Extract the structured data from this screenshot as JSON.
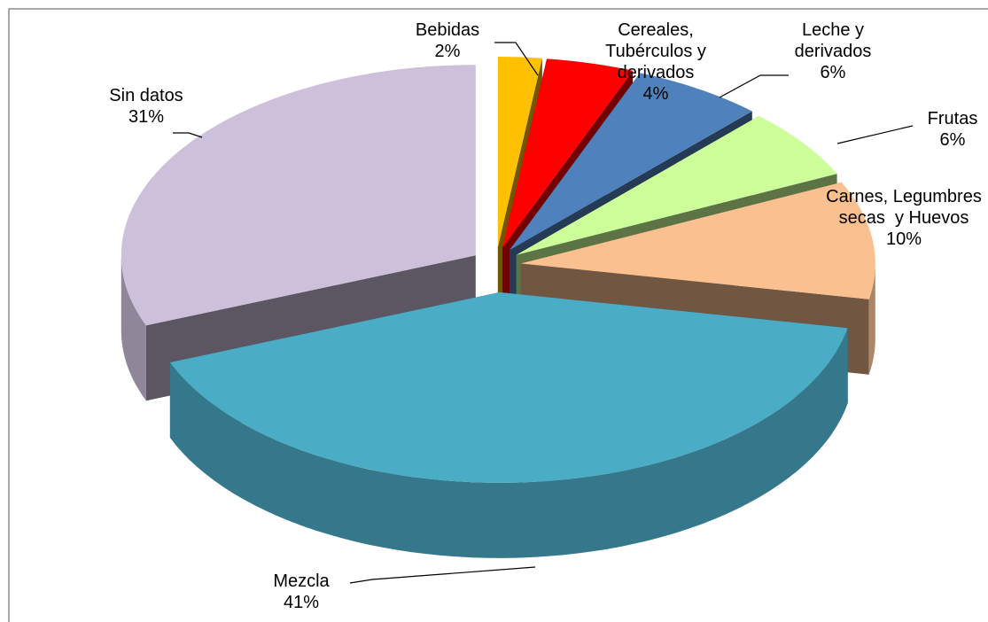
{
  "chart_data": {
    "type": "pie",
    "categories": [
      "Bebidas",
      "Cereales, Tubérculos y derivados",
      "Leche y derivados",
      "Frutas",
      "Carnes, Legumbres secas  y Huevos",
      "Mezcla",
      "Sin datos"
    ],
    "values": [
      2,
      4,
      6,
      6,
      10,
      41,
      31
    ],
    "value_labels": [
      "2%",
      "4%",
      "6%",
      "6%",
      "10%",
      "41%",
      "31%"
    ],
    "colors": [
      "#ffc000",
      "#ff0000",
      "#4f81bd",
      "#ccff99",
      "#fac090",
      "#4bacc6",
      "#ccc0da"
    ]
  }
}
